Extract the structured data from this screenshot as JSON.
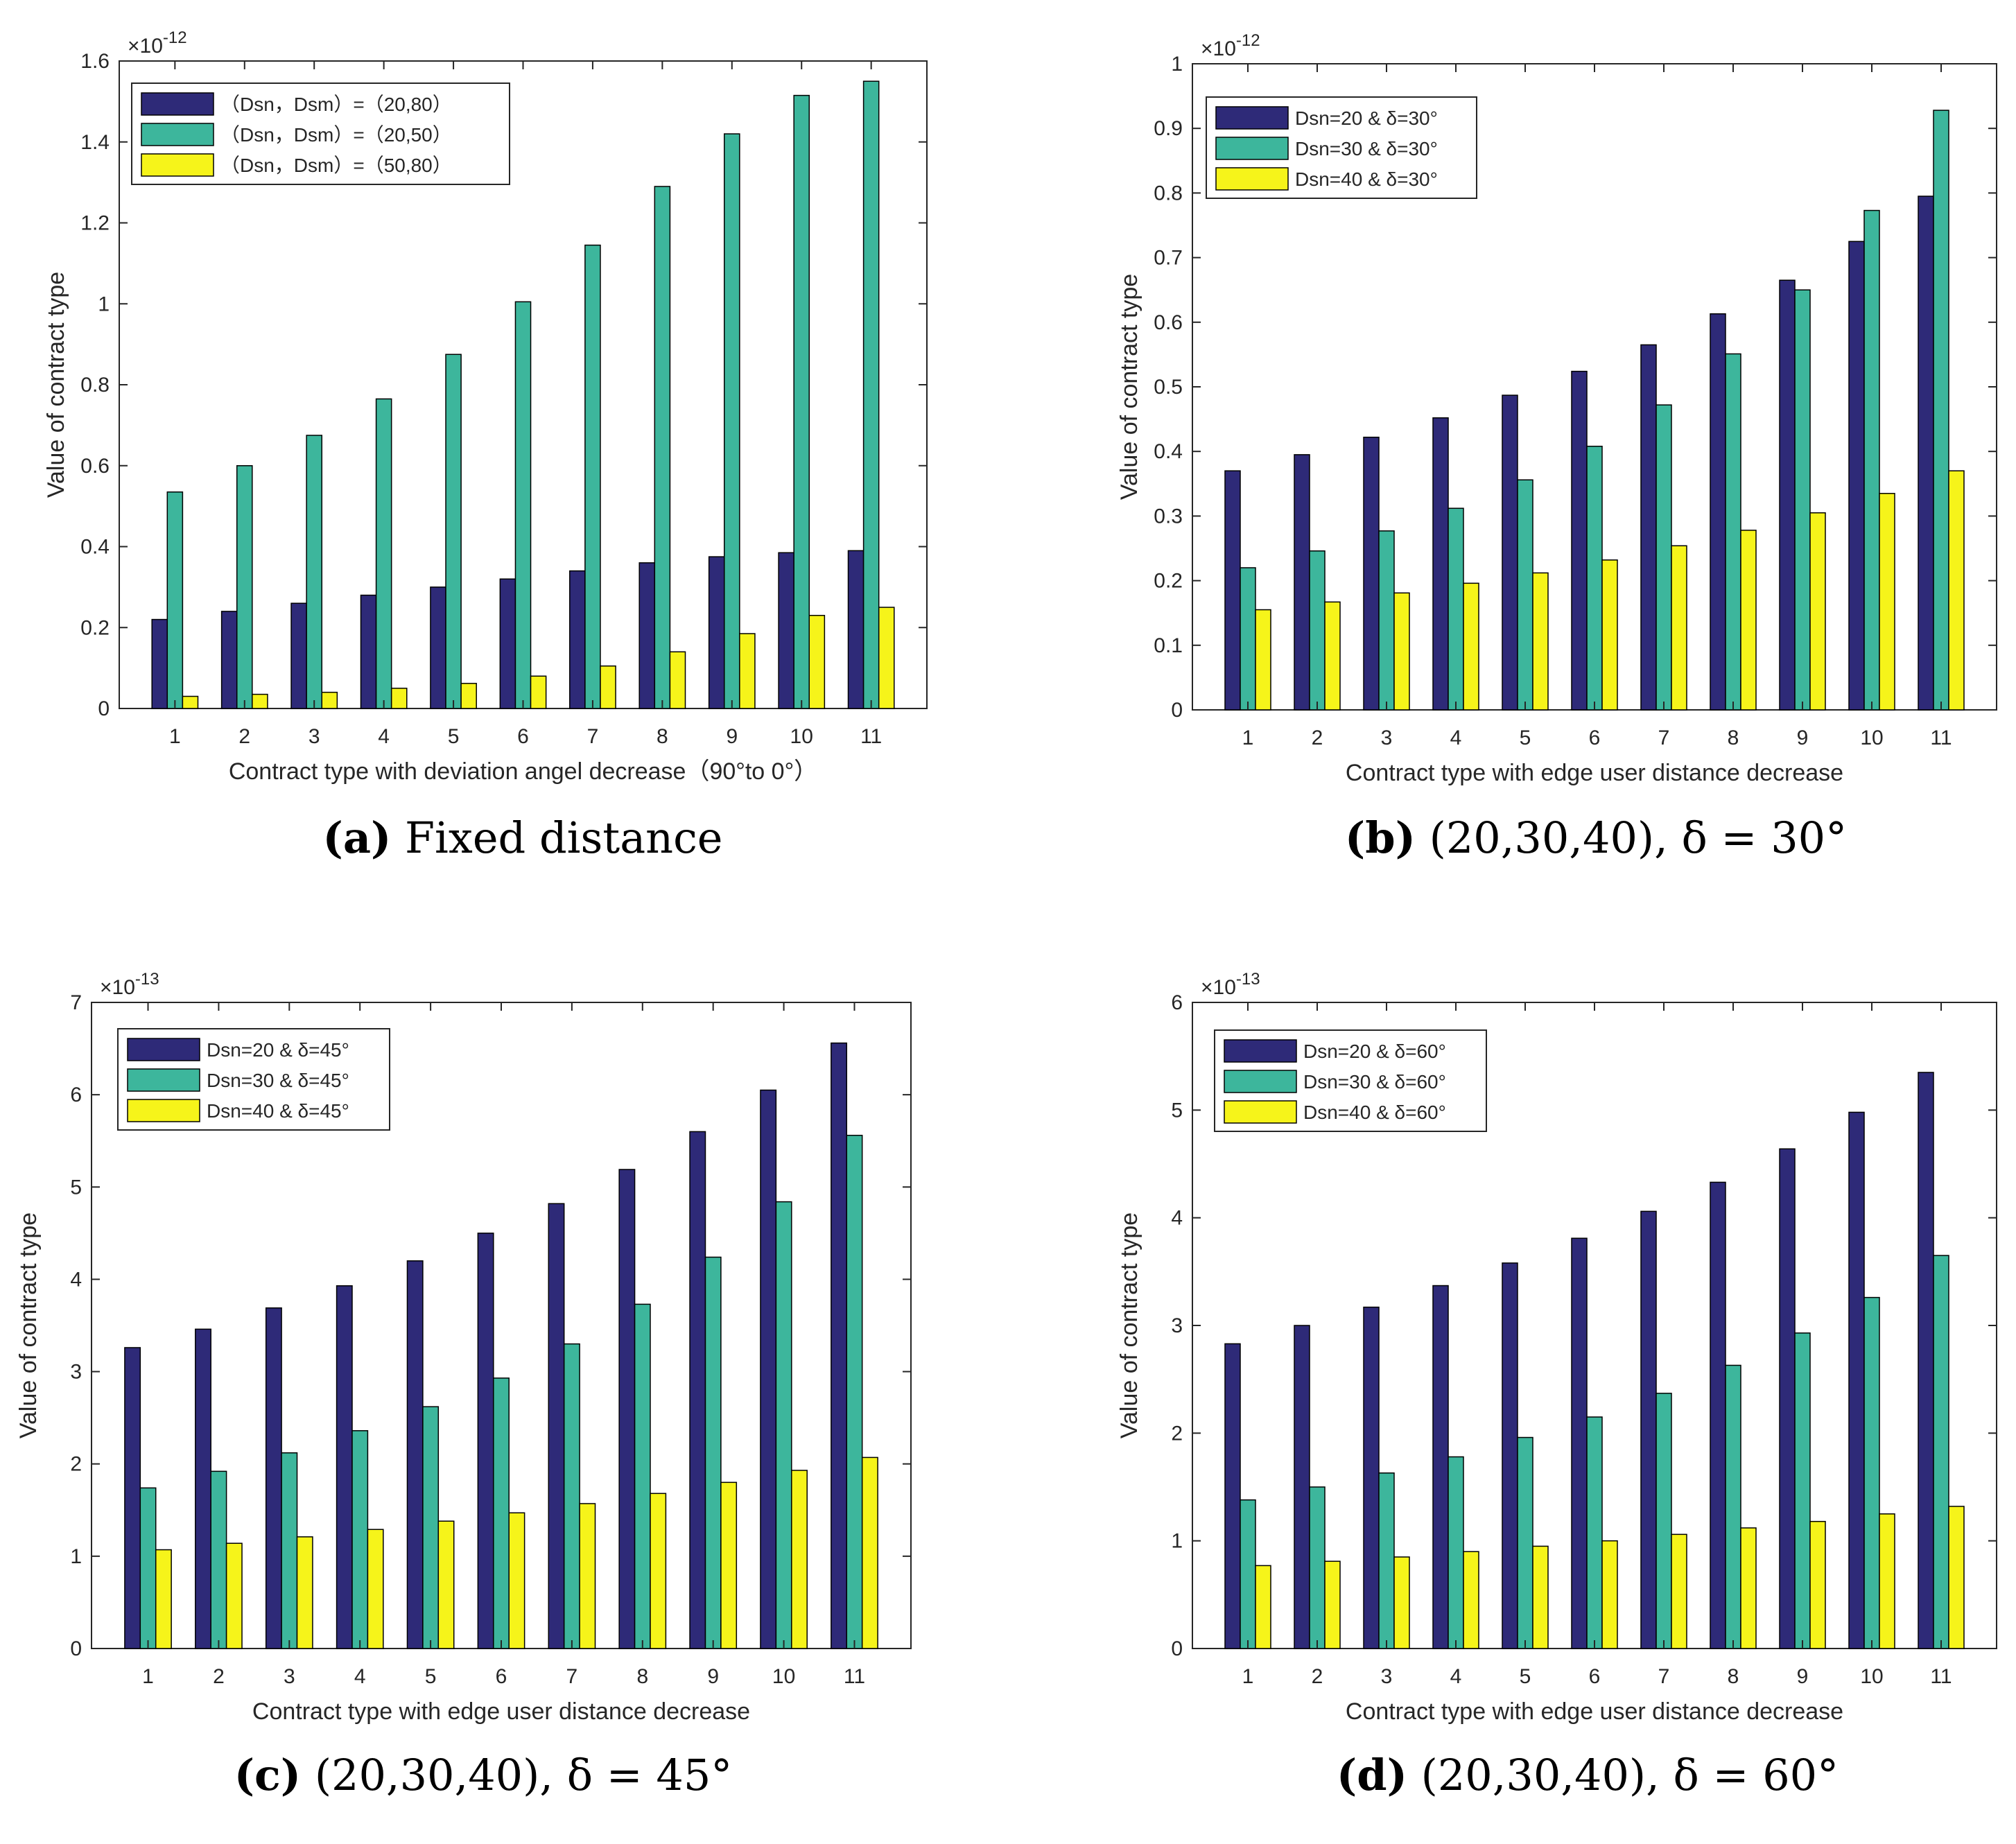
{
  "figure": {
    "colors": {
      "series1": "#2e2a78",
      "series2": "#3db69c",
      "series3": "#f6f41a",
      "axis": "#262626"
    }
  },
  "chart_data": [
    {
      "type": "bar",
      "panel": "a",
      "caption": {
        "letter": "(a)",
        "text": " Fixed distance"
      },
      "exponent": {
        "base": "×10",
        "power": "-12"
      },
      "categories": [
        "1",
        "2",
        "3",
        "4",
        "5",
        "6",
        "7",
        "8",
        "9",
        "10",
        "11"
      ],
      "series": [
        {
          "name": "（Dsn，Dsm）=（20,80）",
          "values": [
            0.22,
            0.24,
            0.26,
            0.28,
            0.3,
            0.32,
            0.34,
            0.36,
            0.375,
            0.385,
            0.39
          ]
        },
        {
          "name": "（Dsn，Dsm）=（20,50）",
          "values": [
            0.535,
            0.6,
            0.675,
            0.765,
            0.875,
            1.005,
            1.145,
            1.29,
            1.42,
            1.515,
            1.55
          ]
        },
        {
          "name": "（Dsn，Dsm）=（50,80）",
          "values": [
            0.03,
            0.035,
            0.04,
            0.05,
            0.062,
            0.08,
            0.105,
            0.14,
            0.185,
            0.23,
            0.25
          ]
        }
      ],
      "ylim": [
        0,
        1.6
      ],
      "yticks": [
        "0",
        "0.2",
        "0.4",
        "0.6",
        "0.8",
        "1",
        "1.2",
        "1.4",
        "1.6"
      ],
      "xlabel": "Contract type with deviation angel decrease（90°to 0°）",
      "ylabel": "Value of contract type",
      "legend": "top-left"
    },
    {
      "type": "bar",
      "panel": "b",
      "caption": {
        "letter": "(b)",
        "text": " (20,30,40), δ = 30°"
      },
      "exponent": {
        "base": "×10",
        "power": "-12"
      },
      "categories": [
        "1",
        "2",
        "3",
        "4",
        "5",
        "6",
        "7",
        "8",
        "9",
        "10",
        "11"
      ],
      "series": [
        {
          "name": "Dsn=20 & δ=30°",
          "values": [
            0.37,
            0.395,
            0.422,
            0.452,
            0.487,
            0.524,
            0.565,
            0.613,
            0.665,
            0.725,
            0.795
          ]
        },
        {
          "name": "Dsn=30 & δ=30°",
          "values": [
            0.22,
            0.246,
            0.277,
            0.312,
            0.356,
            0.408,
            0.472,
            0.551,
            0.65,
            0.773,
            0.928
          ]
        },
        {
          "name": "Dsn=40 & δ=30°",
          "values": [
            0.155,
            0.167,
            0.181,
            0.196,
            0.212,
            0.232,
            0.254,
            0.278,
            0.305,
            0.335,
            0.37
          ]
        }
      ],
      "ylim": [
        0,
        1
      ],
      "yticks": [
        "0",
        "0.1",
        "0.2",
        "0.3",
        "0.4",
        "0.5",
        "0.6",
        "0.7",
        "0.8",
        "0.9",
        "1"
      ],
      "xlabel": "Contract type with edge user distance decrease",
      "ylabel": "Value of contract type",
      "legend": "top-left"
    },
    {
      "type": "bar",
      "panel": "c",
      "caption": {
        "letter": "(c)",
        "text": " (20,30,40), δ = 45°"
      },
      "exponent": {
        "base": "×10",
        "power": "-13"
      },
      "categories": [
        "1",
        "2",
        "3",
        "4",
        "5",
        "6",
        "7",
        "8",
        "9",
        "10",
        "11"
      ],
      "series": [
        {
          "name": "Dsn=20 & δ=45°",
          "values": [
            3.26,
            3.46,
            3.69,
            3.93,
            4.2,
            4.5,
            4.82,
            5.19,
            5.6,
            6.05,
            6.56
          ]
        },
        {
          "name": "Dsn=30 & δ=45°",
          "values": [
            1.74,
            1.92,
            2.12,
            2.36,
            2.62,
            2.93,
            3.3,
            3.73,
            4.24,
            4.84,
            5.56
          ]
        },
        {
          "name": "Dsn=40 & δ=45°",
          "values": [
            1.07,
            1.14,
            1.21,
            1.29,
            1.38,
            1.47,
            1.57,
            1.68,
            1.8,
            1.93,
            2.07
          ]
        }
      ],
      "ylim": [
        0,
        7
      ],
      "yticks": [
        "0",
        "1",
        "2",
        "3",
        "4",
        "5",
        "6",
        "7"
      ],
      "xlabel": "Contract type with edge user distance decrease",
      "ylabel": "Value of contract type",
      "legend": "top-left"
    },
    {
      "type": "bar",
      "panel": "d",
      "caption": {
        "letter": "(d)",
        "text": " (20,30,40), δ = 60°"
      },
      "exponent": {
        "base": "×10",
        "power": "-13"
      },
      "categories": [
        "1",
        "2",
        "3",
        "4",
        "5",
        "6",
        "7",
        "8",
        "9",
        "10",
        "11"
      ],
      "series": [
        {
          "name": "Dsn=20 & δ=60°",
          "values": [
            2.83,
            3.0,
            3.17,
            3.37,
            3.58,
            3.81,
            4.06,
            4.33,
            4.64,
            4.98,
            5.35
          ]
        },
        {
          "name": "Dsn=30 & δ=60°",
          "values": [
            1.38,
            1.5,
            1.63,
            1.78,
            1.96,
            2.15,
            2.37,
            2.63,
            2.93,
            3.26,
            3.65
          ]
        },
        {
          "name": "Dsn=40 & δ=60°",
          "values": [
            0.77,
            0.81,
            0.85,
            0.9,
            0.95,
            1.0,
            1.06,
            1.12,
            1.18,
            1.25,
            1.32
          ]
        }
      ],
      "ylim": [
        0,
        6
      ],
      "yticks": [
        "0",
        "1",
        "2",
        "3",
        "4",
        "5",
        "6"
      ],
      "xlabel": "Contract type with edge user distance decrease",
      "ylabel": "Value of contract type",
      "legend": "top-left"
    }
  ]
}
